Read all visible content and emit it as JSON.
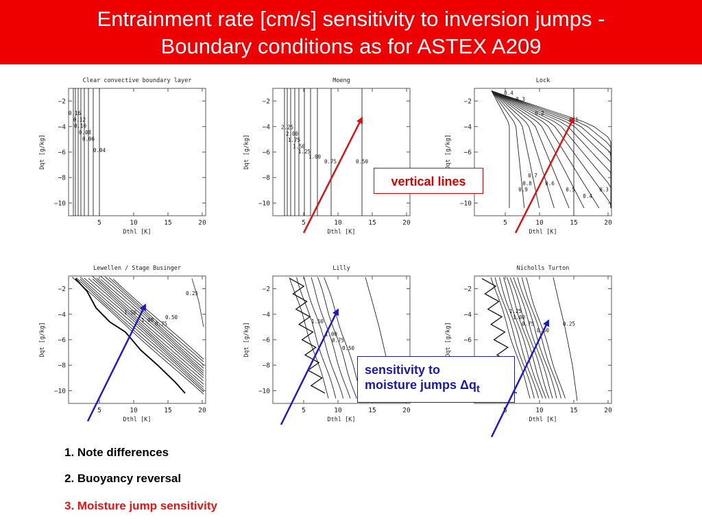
{
  "slide": {
    "title_line1": "Entrainment rate [cm/s] sensitivity to inversion jumps -",
    "title_line2": "Boundary conditions as for ASTEX A209",
    "callout_red": "vertical lines",
    "callout_blue_line1": "sensitivity to",
    "callout_blue_line2": "moisture jumps ",
    "callout_blue_symbol": "Δq",
    "callout_blue_sub": "t",
    "notes": [
      "1. Note differences",
      "2. Buoyancy reversal",
      "3. Moisture jump sensitivity"
    ],
    "colors": {
      "banner": "#ee0000",
      "red_arrow": "#dd1111",
      "blue_arrow": "#1a1acc",
      "note3": "#ee1111"
    }
  },
  "chart_data": [
    {
      "type": "contour",
      "title": "Clear convective boundary layer",
      "xlabel": "Dthl [K]",
      "ylabel": "Dqt [g/kg]",
      "xlim": [
        0.5,
        20.5
      ],
      "ylim": [
        -11,
        -1
      ],
      "xticks": [
        5,
        10,
        15,
        20
      ],
      "yticks": [
        -2,
        -4,
        -6,
        -8,
        -10
      ],
      "vertical_lines": [
        1.2,
        1.5,
        1.9,
        2.3,
        2.8,
        3.4,
        4.1,
        5.0
      ],
      "labels": [
        {
          "text": "0.16",
          "x": 1.4,
          "y": -3.1
        },
        {
          "text": "0.12",
          "x": 2.1,
          "y": -3.6
        },
        {
          "text": "0.10",
          "x": 2.2,
          "y": -4.1
        },
        {
          "text": "0.08",
          "x": 2.9,
          "y": -4.6
        },
        {
          "text": "0.06",
          "x": 3.4,
          "y": -5.1
        },
        {
          "text": "0.04",
          "x": 5.0,
          "y": -6.0
        }
      ]
    },
    {
      "type": "contour",
      "title": "Moeng",
      "xlabel": "Dthl [K]",
      "ylabel": "Dqt [g/kg]",
      "xlim": [
        0.5,
        20.5
      ],
      "ylim": [
        -11,
        -1
      ],
      "xticks": [
        5,
        10,
        15,
        20
      ],
      "yticks": [
        -2,
        -4,
        -6,
        -8,
        -10
      ],
      "vertical_lines": [
        2.2,
        2.6,
        3.1,
        3.7,
        4.3,
        5.1,
        6.0,
        7.0,
        9.0,
        13.5
      ],
      "labels": [
        {
          "text": "2.25",
          "x": 2.6,
          "y": -4.2
        },
        {
          "text": "2.00",
          "x": 3.3,
          "y": -4.7
        },
        {
          "text": "1.75",
          "x": 3.6,
          "y": -5.2
        },
        {
          "text": "1.50",
          "x": 4.3,
          "y": -5.7
        },
        {
          "text": "1.25",
          "x": 5.1,
          "y": -6.1
        },
        {
          "text": "1.00",
          "x": 6.6,
          "y": -6.5
        },
        {
          "text": "0.75",
          "x": 8.9,
          "y": -6.9
        },
        {
          "text": "0.50",
          "x": 13.5,
          "y": -6.9
        }
      ]
    },
    {
      "type": "contour",
      "title": "Lock",
      "xlabel": "Dthl [K]",
      "ylabel": "Dqt [g/kg]",
      "xlim": [
        0.5,
        20.5
      ],
      "ylim": [
        -11,
        -1
      ],
      "xticks": [
        5,
        10,
        15,
        20
      ],
      "yticks": [
        -2,
        -4,
        -6,
        -8,
        -10
      ],
      "vertical_lines": [
        15.0
      ],
      "labels": [
        {
          "text": "0.4",
          "x": 5.5,
          "y": -1.5
        },
        {
          "text": "0.3",
          "x": 7.2,
          "y": -2.0
        },
        {
          "text": "0.2",
          "x": 10.0,
          "y": -3.1
        },
        {
          "text": "0.1",
          "x": 15.0,
          "y": -3.6
        },
        {
          "text": "0.7",
          "x": 9.0,
          "y": -8.0
        },
        {
          "text": "0.8",
          "x": 8.2,
          "y": -8.6
        },
        {
          "text": "0.6",
          "x": 11.5,
          "y": -8.6
        },
        {
          "text": "0.9",
          "x": 7.6,
          "y": -9.1
        },
        {
          "text": "0.5",
          "x": 14.5,
          "y": -9.1
        },
        {
          "text": "0.4",
          "x": 17.0,
          "y": -9.6
        },
        {
          "text": "0.3",
          "x": 19.4,
          "y": -9.1
        }
      ]
    },
    {
      "type": "contour",
      "title": "Lewellen / Stage Businger",
      "xlabel": "Dthl [K]",
      "ylabel": "Dqt [g/kg]",
      "xlim": [
        0.5,
        20.5
      ],
      "ylim": [
        -11,
        -1
      ],
      "xticks": [
        5,
        10,
        15,
        20
      ],
      "yticks": [
        -2,
        -4,
        -6,
        -8,
        -10
      ],
      "vertical_lines": [],
      "labels": [
        {
          "text": "0.25",
          "x": 18.5,
          "y": -2.5
        },
        {
          "text": "1.50",
          "x": 9.5,
          "y": -4.0
        },
        {
          "text": "1.00",
          "x": 12.0,
          "y": -4.6
        },
        {
          "text": "0.75",
          "x": 14.0,
          "y": -4.9
        },
        {
          "text": "0.50",
          "x": 15.5,
          "y": -4.4
        }
      ]
    },
    {
      "type": "contour",
      "title": "Lilly",
      "xlabel": "Dthl [K]",
      "ylabel": "Dqt [g/kg]",
      "xlim": [
        0.5,
        20.5
      ],
      "ylim": [
        -11,
        -1
      ],
      "xticks": [
        5,
        10,
        15,
        20
      ],
      "yticks": [
        -2,
        -4,
        -6,
        -8,
        -10
      ],
      "vertical_lines": [],
      "labels": [
        {
          "text": "1.50",
          "x": 7.0,
          "y": -4.7
        },
        {
          "text": "1.00",
          "x": 9.0,
          "y": -5.7
        },
        {
          "text": "0.75",
          "x": 10.0,
          "y": -6.2
        },
        {
          "text": "0.50",
          "x": 11.5,
          "y": -6.8
        }
      ]
    },
    {
      "type": "contour",
      "title": "Nicholls Turton",
      "xlabel": "Dthl [K]",
      "ylabel": "Dqt [g/kg]",
      "xlim": [
        0.5,
        20.5
      ],
      "ylim": [
        -11,
        -1
      ],
      "xticks": [
        5,
        10,
        15,
        20
      ],
      "yticks": [
        -2,
        -4,
        -6,
        -8,
        -10
      ],
      "vertical_lines": [],
      "labels": [
        {
          "text": "1.25",
          "x": 6.5,
          "y": -3.9
        },
        {
          "text": "1.00",
          "x": 7.0,
          "y": -4.4
        },
        {
          "text": "0.75",
          "x": 8.3,
          "y": -4.9
        },
        {
          "text": "0.50",
          "x": 10.5,
          "y": -5.4
        },
        {
          "text": "0.25",
          "x": 14.3,
          "y": -4.9
        }
      ]
    }
  ]
}
